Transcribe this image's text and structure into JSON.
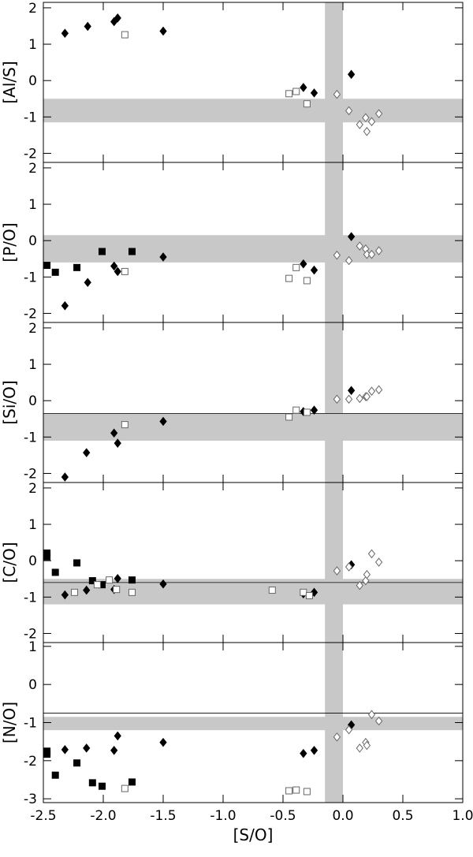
{
  "chart_data": [
    {
      "type": "scatter",
      "ylabel": "[Al/S]",
      "xlim": [
        -2.5,
        1.0
      ],
      "ylim": [
        -2.25,
        2.15
      ],
      "yticks": [
        2,
        1,
        0,
        -1,
        -2
      ],
      "vband": [
        -0.15,
        0.0
      ],
      "hband": [
        -0.5,
        -1.15
      ],
      "series": [
        {
          "marker": "diamond",
          "filled": true,
          "color": "#000000",
          "x": [
            -2.32,
            -2.13,
            -1.91,
            -1.88,
            -1.5,
            -0.33,
            -0.24,
            0.07
          ],
          "values": [
            1.3,
            1.49,
            1.62,
            1.72,
            1.36,
            -0.19,
            -0.34,
            0.17
          ]
        },
        {
          "marker": "square",
          "filled": false,
          "color": "#666666",
          "x": [
            -1.82,
            -0.45,
            -0.39,
            -0.3
          ],
          "values": [
            1.26,
            -0.36,
            -0.3,
            -0.64
          ]
        },
        {
          "marker": "diamond",
          "filled": false,
          "color": "#666666",
          "x": [
            -0.05,
            0.05,
            0.14,
            0.19,
            0.2,
            0.24,
            0.3
          ],
          "values": [
            -0.38,
            -0.83,
            -1.21,
            -1.02,
            -1.4,
            -1.13,
            -0.91
          ]
        }
      ]
    },
    {
      "type": "scatter",
      "ylabel": "[P/O]",
      "xlim": [
        -2.5,
        1.0
      ],
      "ylim": [
        -2.25,
        2.15
      ],
      "yticks": [
        2,
        1,
        0,
        -1,
        -2
      ],
      "vband": [
        -0.15,
        0.0
      ],
      "hband": [
        0.15,
        -0.6
      ],
      "series": [
        {
          "marker": "diamond",
          "filled": true,
          "color": "#000000",
          "x": [
            -2.32,
            -2.13,
            -1.91,
            -1.88,
            -1.5,
            -0.33,
            -0.24,
            0.07
          ],
          "values": [
            -1.79,
            -1.15,
            -0.7,
            -0.85,
            -0.45,
            -0.64,
            -0.81,
            0.11
          ]
        },
        {
          "marker": "square",
          "filled": true,
          "color": "#000000",
          "x": [
            -2.47,
            -2.4,
            -2.22,
            -2.01,
            -1.76
          ],
          "values": [
            -0.68,
            -0.87,
            -0.74,
            -0.3,
            -0.3
          ]
        },
        {
          "marker": "square",
          "filled": false,
          "color": "#666666",
          "x": [
            -1.82,
            -0.45,
            -0.39,
            -0.3
          ],
          "values": [
            -0.85,
            -1.04,
            -0.74,
            -1.1
          ]
        },
        {
          "marker": "diamond",
          "filled": false,
          "color": "#666666",
          "x": [
            -0.05,
            0.05,
            0.14,
            0.19,
            0.2,
            0.24,
            0.3
          ],
          "values": [
            -0.4,
            -0.55,
            -0.15,
            -0.23,
            -0.38,
            -0.38,
            -0.28
          ]
        }
      ]
    },
    {
      "type": "scatter",
      "ylabel": "[Si/O]",
      "xlim": [
        -2.5,
        1.0
      ],
      "ylim": [
        -2.25,
        2.15
      ],
      "yticks": [
        2,
        1,
        0,
        -1,
        -2
      ],
      "vband": [
        -0.15,
        0.0
      ],
      "hband": [
        -0.35,
        -1.1
      ],
      "hline": -0.35,
      "series": [
        {
          "marker": "diamond",
          "filled": true,
          "color": "#000000",
          "x": [
            -2.32,
            -2.14,
            -1.91,
            -1.88,
            -1.5,
            -0.33,
            -0.24,
            0.07
          ],
          "values": [
            -2.1,
            -1.43,
            -0.89,
            -1.17,
            -0.57,
            -0.3,
            -0.26,
            0.28
          ]
        },
        {
          "marker": "square",
          "filled": false,
          "color": "#666666",
          "x": [
            -1.82,
            -0.45,
            -0.39,
            -0.3
          ],
          "values": [
            -0.66,
            -0.45,
            -0.26,
            -0.32
          ]
        },
        {
          "marker": "diamond",
          "filled": false,
          "color": "#666666",
          "x": [
            -0.05,
            0.05,
            0.14,
            0.19,
            0.2,
            0.24,
            0.3
          ],
          "values": [
            0.04,
            0.04,
            0.06,
            0.11,
            0.11,
            0.26,
            0.3
          ]
        }
      ]
    },
    {
      "type": "scatter",
      "ylabel": "[C/O]",
      "xlim": [
        -2.5,
        1.0
      ],
      "ylim": [
        -2.25,
        2.15
      ],
      "yticks": [
        2,
        1,
        0,
        -1,
        -2
      ],
      "vband": [
        -0.15,
        0.0
      ],
      "hband": [
        -0.5,
        -1.2
      ],
      "hline": -0.6,
      "series": [
        {
          "marker": "square",
          "filled": true,
          "color": "#000000",
          "x": [
            -2.47,
            -2.47,
            -2.4,
            -2.22,
            -2.09,
            -2.01,
            -1.76
          ],
          "values": [
            0.21,
            0.11,
            -0.32,
            -0.06,
            -0.55,
            -0.66,
            -0.53
          ]
        },
        {
          "marker": "diamond",
          "filled": true,
          "color": "#000000",
          "x": [
            -2.32,
            -2.14,
            -1.91,
            -1.88,
            -1.5,
            -0.33,
            -0.24,
            0.07
          ],
          "values": [
            -0.94,
            -0.81,
            -0.79,
            -0.49,
            -0.64,
            -0.91,
            -0.87,
            -0.11
          ]
        },
        {
          "marker": "square",
          "filled": false,
          "color": "#666666",
          "x": [
            -2.24,
            -2.05,
            -1.95,
            -1.89,
            -1.76,
            -0.59,
            -0.33,
            -0.28
          ],
          "values": [
            -0.87,
            -0.66,
            -0.53,
            -0.79,
            -0.87,
            -0.81,
            -0.87,
            -0.96
          ]
        },
        {
          "marker": "diamond",
          "filled": false,
          "color": "#666666",
          "x": [
            -0.05,
            0.05,
            0.14,
            0.19,
            0.2,
            0.24,
            0.3
          ],
          "values": [
            -0.28,
            -0.17,
            -0.68,
            -0.55,
            -0.38,
            0.19,
            -0.04
          ]
        }
      ]
    },
    {
      "type": "scatter",
      "ylabel": "[N/O]",
      "xlabel": "[S/O]",
      "xlim": [
        -2.5,
        1.0
      ],
      "ylim": [
        -3.1,
        1.1
      ],
      "yticks": [
        1,
        0,
        -1,
        -2,
        -3
      ],
      "xticks": [
        {
          "value": -2.5,
          "label": "-2.5"
        },
        {
          "value": -2.0,
          "label": "-2.0"
        },
        {
          "value": -1.5,
          "label": "-1.5"
        },
        {
          "value": -1.0,
          "label": "-1.0"
        },
        {
          "value": -0.5,
          "label": "-0.5"
        },
        {
          "value": 0.0,
          "label": "0.0"
        },
        {
          "value": 0.5,
          "label": "0.5"
        },
        {
          "value": 1.0,
          "label": "1.0"
        }
      ],
      "vband": [
        -0.15,
        0.0
      ],
      "hband": [
        -0.85,
        -1.2
      ],
      "hline": -0.75,
      "series": [
        {
          "marker": "square",
          "filled": true,
          "color": "#000000",
          "x": [
            -2.47,
            -2.47,
            -2.4,
            -2.22,
            -2.09,
            -2.01,
            -1.76
          ],
          "values": [
            -1.83,
            -1.75,
            -2.38,
            -2.06,
            -2.58,
            -2.67,
            -2.56
          ]
        },
        {
          "marker": "diamond",
          "filled": true,
          "color": "#000000",
          "x": [
            -2.32,
            -2.14,
            -1.91,
            -1.88,
            -1.5,
            -0.33,
            -0.24,
            0.07
          ],
          "values": [
            -1.71,
            -1.67,
            -1.73,
            -1.35,
            -1.52,
            -1.81,
            -1.73,
            -1.06
          ]
        },
        {
          "marker": "square",
          "filled": false,
          "color": "#666666",
          "x": [
            -1.82,
            -0.45,
            -0.39,
            -0.3
          ],
          "values": [
            -2.73,
            -2.79,
            -2.77,
            -2.81
          ]
        },
        {
          "marker": "diamond",
          "filled": false,
          "color": "#666666",
          "x": [
            -0.05,
            0.05,
            0.14,
            0.19,
            0.2,
            0.24,
            0.3
          ],
          "values": [
            -1.38,
            -1.19,
            -1.67,
            -1.52,
            -1.6,
            -0.79,
            -0.96
          ]
        }
      ]
    }
  ]
}
